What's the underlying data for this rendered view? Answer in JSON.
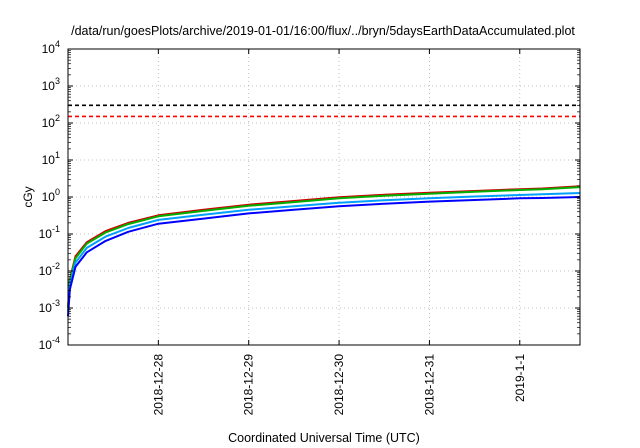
{
  "chart_data": {
    "type": "line",
    "title": "/data/run/goesPlots/archive/2019-01-01/16:00/flux/../bryn/5daysEarthDataAccumulated.plot",
    "xlabel": "Coordinated Universal Time (UTC)",
    "ylabel": "cGy",
    "yscale": "log",
    "ylim": [
      0.0001,
      10000
    ],
    "xlim": [
      "2018-12-27T00:00",
      "2019-01-01T16:00"
    ],
    "y_ticks": [
      {
        "mantissa": "10",
        "exponent": "-4",
        "value": 0.0001
      },
      {
        "mantissa": "10",
        "exponent": "-3",
        "value": 0.001
      },
      {
        "mantissa": "10",
        "exponent": "-2",
        "value": 0.01
      },
      {
        "mantissa": "10",
        "exponent": "-1",
        "value": 0.1
      },
      {
        "mantissa": "10",
        "exponent": "0",
        "value": 1
      },
      {
        "mantissa": "10",
        "exponent": "1",
        "value": 10
      },
      {
        "mantissa": "10",
        "exponent": "2",
        "value": 100
      },
      {
        "mantissa": "10",
        "exponent": "3",
        "value": 1000
      },
      {
        "mantissa": "10",
        "exponent": "4",
        "value": 10000
      }
    ],
    "x_ticks": [
      {
        "label": "2018-12-28",
        "date": "2018-12-28T00:00"
      },
      {
        "label": "2018-12-29",
        "date": "2018-12-29T00:00"
      },
      {
        "label": "2018-12-30",
        "date": "2018-12-30T00:00"
      },
      {
        "label": "2018-12-31",
        "date": "2018-12-31T00:00"
      },
      {
        "label": "2019-1-1",
        "date": "2019-01-01T00:00"
      }
    ],
    "grid": true,
    "reference_lines": [
      {
        "y": 300,
        "color": "#000000",
        "style": "dashed"
      },
      {
        "y": 150,
        "color": "#ff0000",
        "style": "dashed"
      }
    ],
    "series": [
      {
        "color": "#d00000",
        "x": [
          "2018-12-27T00:00",
          "2018-12-27T00:30",
          "2018-12-27T02:00",
          "2018-12-27T05:00",
          "2018-12-27T10:00",
          "2018-12-27T16:00",
          "2018-12-28T00:00",
          "2018-12-28T12:00",
          "2018-12-29T00:00",
          "2018-12-29T12:00",
          "2018-12-30T00:00",
          "2018-12-30T12:00",
          "2018-12-31T00:00",
          "2018-12-31T12:00",
          "2019-01-01T00:00",
          "2019-01-01T06:00",
          "2019-01-01T16:00"
        ],
        "y": [
          0.001,
          0.006,
          0.025,
          0.06,
          0.12,
          0.2,
          0.32,
          0.45,
          0.62,
          0.78,
          0.98,
          1.15,
          1.3,
          1.45,
          1.62,
          1.7,
          1.95
        ]
      },
      {
        "color": "#00b000",
        "x": [
          "2018-12-27T00:00",
          "2018-12-27T00:30",
          "2018-12-27T02:00",
          "2018-12-27T05:00",
          "2018-12-27T10:00",
          "2018-12-27T16:00",
          "2018-12-28T00:00",
          "2018-12-28T12:00",
          "2018-12-29T00:00",
          "2018-12-29T12:00",
          "2018-12-30T00:00",
          "2018-12-30T12:00",
          "2018-12-31T00:00",
          "2018-12-31T12:00",
          "2019-01-01T00:00",
          "2019-01-01T06:00",
          "2019-01-01T16:00"
        ],
        "y": [
          0.001,
          0.0055,
          0.022,
          0.055,
          0.11,
          0.185,
          0.3,
          0.42,
          0.58,
          0.73,
          0.92,
          1.08,
          1.22,
          1.38,
          1.55,
          1.62,
          1.85
        ]
      },
      {
        "color": "#00a0ff",
        "x": [
          "2018-12-27T00:00",
          "2018-12-27T00:30",
          "2018-12-27T02:00",
          "2018-12-27T05:00",
          "2018-12-27T10:00",
          "2018-12-27T16:00",
          "2018-12-28T00:00",
          "2018-12-28T12:00",
          "2018-12-29T00:00",
          "2018-12-29T12:00",
          "2018-12-30T00:00",
          "2018-12-30T12:00",
          "2018-12-31T00:00",
          "2018-12-31T12:00",
          "2019-01-01T00:00",
          "2019-01-01T06:00",
          "2019-01-01T16:00"
        ],
        "y": [
          0.0008,
          0.0042,
          0.017,
          0.042,
          0.085,
          0.145,
          0.24,
          0.33,
          0.45,
          0.56,
          0.7,
          0.82,
          0.93,
          1.03,
          1.13,
          1.18,
          1.28
        ]
      },
      {
        "color": "#0000ff",
        "x": [
          "2018-12-27T00:00",
          "2018-12-27T00:30",
          "2018-12-27T02:00",
          "2018-12-27T05:00",
          "2018-12-27T10:00",
          "2018-12-27T16:00",
          "2018-12-28T00:00",
          "2018-12-28T12:00",
          "2018-12-29T00:00",
          "2018-12-29T12:00",
          "2018-12-30T00:00",
          "2018-12-30T12:00",
          "2018-12-31T00:00",
          "2018-12-31T12:00",
          "2019-01-01T00:00",
          "2019-01-01T06:00",
          "2019-01-01T16:00"
        ],
        "y": [
          0.0006,
          0.0032,
          0.013,
          0.032,
          0.065,
          0.115,
          0.19,
          0.26,
          0.36,
          0.45,
          0.56,
          0.66,
          0.75,
          0.83,
          0.92,
          0.94,
          1.0
        ]
      }
    ]
  }
}
